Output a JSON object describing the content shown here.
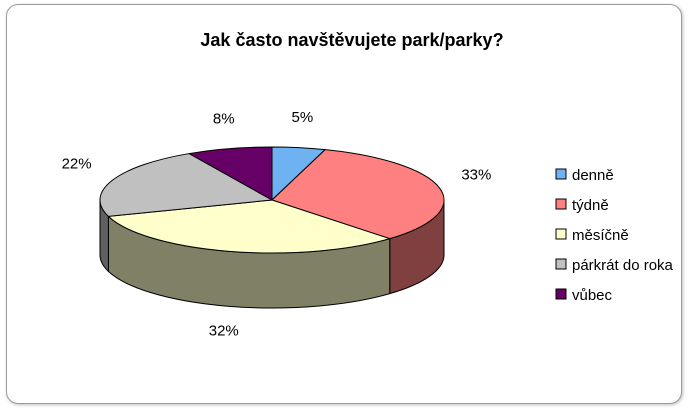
{
  "chart_data": {
    "type": "pie",
    "style": "3d",
    "title": "Jak často navštěvujete park/parky?",
    "legend_position": "right",
    "slices": [
      {
        "label": "denně",
        "value": 5,
        "display": "5%",
        "color": "#6FB2F2"
      },
      {
        "label": "týdně",
        "value": 33,
        "display": "33%",
        "color": "#FF8080"
      },
      {
        "label": "měsíčně",
        "value": 32,
        "display": "32%",
        "color": "#FFFFCC"
      },
      {
        "label": "párkrát do roka",
        "value": 22,
        "display": "22%",
        "color": "#C0C0C0"
      },
      {
        "label": "vůbec",
        "value": 8,
        "display": "8%",
        "color": "#660066"
      }
    ]
  }
}
